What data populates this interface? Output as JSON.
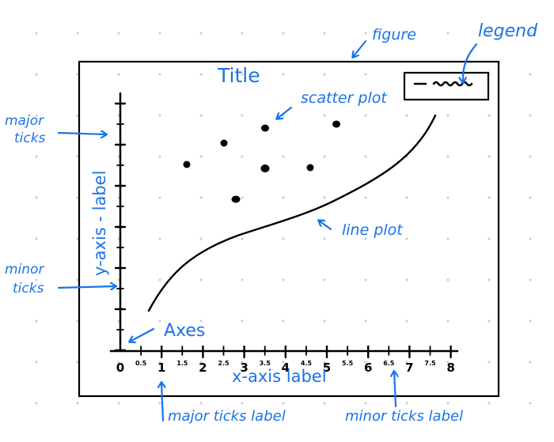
{
  "labels": {
    "figure": "figure",
    "legend": "legend",
    "title": "Title",
    "scatter_plot": "scatter plot",
    "major_ticks": [
      "major",
      "ticks"
    ],
    "minor_ticks": [
      "minor",
      "ticks"
    ],
    "y_axis_label": "y-axis - label",
    "line_plot": "line plot",
    "axes": "Axes",
    "x_axis_label": "x-axis label",
    "major_ticks_label": "major ticks label",
    "minor_ticks_label": "minor ticks label"
  },
  "x_tick_labels": [
    "0",
    "0.5",
    "1",
    "1.5",
    "2",
    "2.5",
    "3",
    "3.5",
    "4",
    "4.5",
    "5",
    "5.5",
    "6",
    "6.5",
    "7",
    "7.5",
    "8"
  ],
  "colors": {
    "annotation": "#1a73e8",
    "ink": "#000000"
  }
}
